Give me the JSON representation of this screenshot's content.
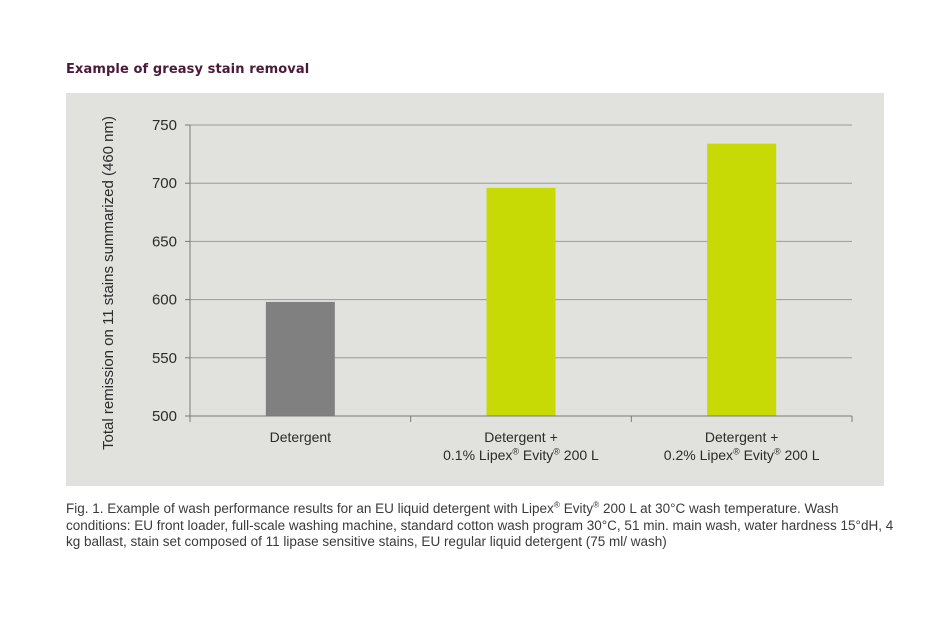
{
  "heading": "Example of greasy stain removal",
  "caption": "Fig. 1. Example of wash performance results for an EU liquid detergent with Lipex® Evity® 200 L at 30°C wash temperature. Wash conditions: EU front loader, full-scale washing machine, standard cotton wash program 30°C, 51 min. main wash, water hardness 15°dH, 4 kg ballast, stain set composed of 11 lipase sensitive stains, EU regular liquid detergent (75 ml/ wash)",
  "chart_data": {
    "type": "bar",
    "title": "Example of greasy stain removal",
    "ylabel": "Total remission on 11 stains summarized (460 nm)",
    "xlabel": "",
    "ylim": [
      500,
      750
    ],
    "yticks": [
      500,
      550,
      600,
      650,
      700,
      750
    ],
    "grid": true,
    "categories": [
      "Detergent",
      "Detergent + 0.1% Lipex® Evity® 200 L",
      "Detergent + 0.2% Lipex® Evity® 200 L"
    ],
    "category_lines": [
      [
        "Detergent"
      ],
      [
        "Detergent +",
        "0.1% Lipex® Evity® 200 L"
      ],
      [
        "Detergent +",
        "0.2% Lipex® Evity® 200 L"
      ]
    ],
    "values": [
      598,
      696,
      734
    ],
    "colors": [
      "#808080",
      "#c7da05",
      "#c7da05"
    ],
    "colors_meaning": "grey = reference detergent, lime green = detergent with Lipex Evity"
  }
}
